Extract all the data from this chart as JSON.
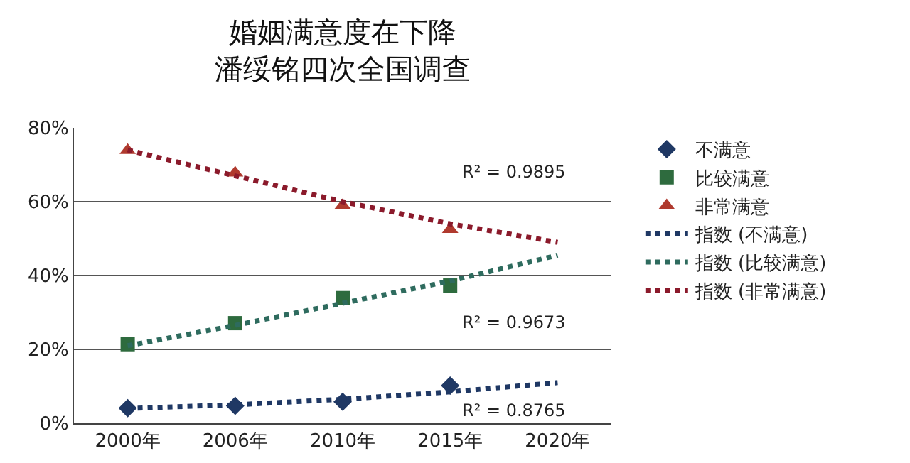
{
  "chart_data": {
    "type": "scatter",
    "title": "婚姻满意度在下降",
    "subtitle": "潘绥铭四次全国调查",
    "categories": [
      "2000年",
      "2006年",
      "2010年",
      "2015年",
      "2020年"
    ],
    "series": [
      {
        "name": "不满意",
        "marker": "diamond",
        "color": "#1f3864",
        "values": [
          4.1,
          4.7,
          5.8,
          10.2,
          null
        ]
      },
      {
        "name": "比较满意",
        "marker": "square",
        "color": "#2e6b3e",
        "values": [
          21.4,
          27.1,
          33.9,
          37.3,
          null
        ]
      },
      {
        "name": "非常满意",
        "marker": "triangle",
        "color": "#b03a2e",
        "values": [
          73.9,
          67.8,
          59,
          52.5,
          null
        ]
      },
      {
        "name": "指数 (不满意)",
        "type": "line",
        "marker": "none",
        "line_style": "dotted",
        "color": "#1f3864",
        "values": [
          4,
          5,
          6.5,
          8.5,
          11
        ]
      },
      {
        "name": "指数 (比较满意)",
        "type": "line",
        "marker": "none",
        "line_style": "dotted",
        "color": "#2e6b5e",
        "values": [
          21,
          26.5,
          32.5,
          38.5,
          45.5
        ]
      },
      {
        "name": "指数 (非常满意)",
        "type": "line",
        "marker": "none",
        "line_style": "dotted",
        "color": "#8b1a2b",
        "values": [
          74,
          67,
          60,
          54,
          49
        ]
      }
    ],
    "ylim": [
      0,
      80
    ],
    "yticks": [
      {
        "value": 0,
        "label": "0%"
      },
      {
        "value": 20,
        "label": "20%"
      },
      {
        "value": 40,
        "label": "40%"
      },
      {
        "value": 60,
        "label": "60%"
      },
      {
        "value": 80,
        "label": "80%"
      }
    ],
    "grid": "y",
    "legend": "right",
    "annotations": [
      "R² = 0.9895",
      "R² = 0.9673",
      "R² = 0.8765"
    ]
  }
}
